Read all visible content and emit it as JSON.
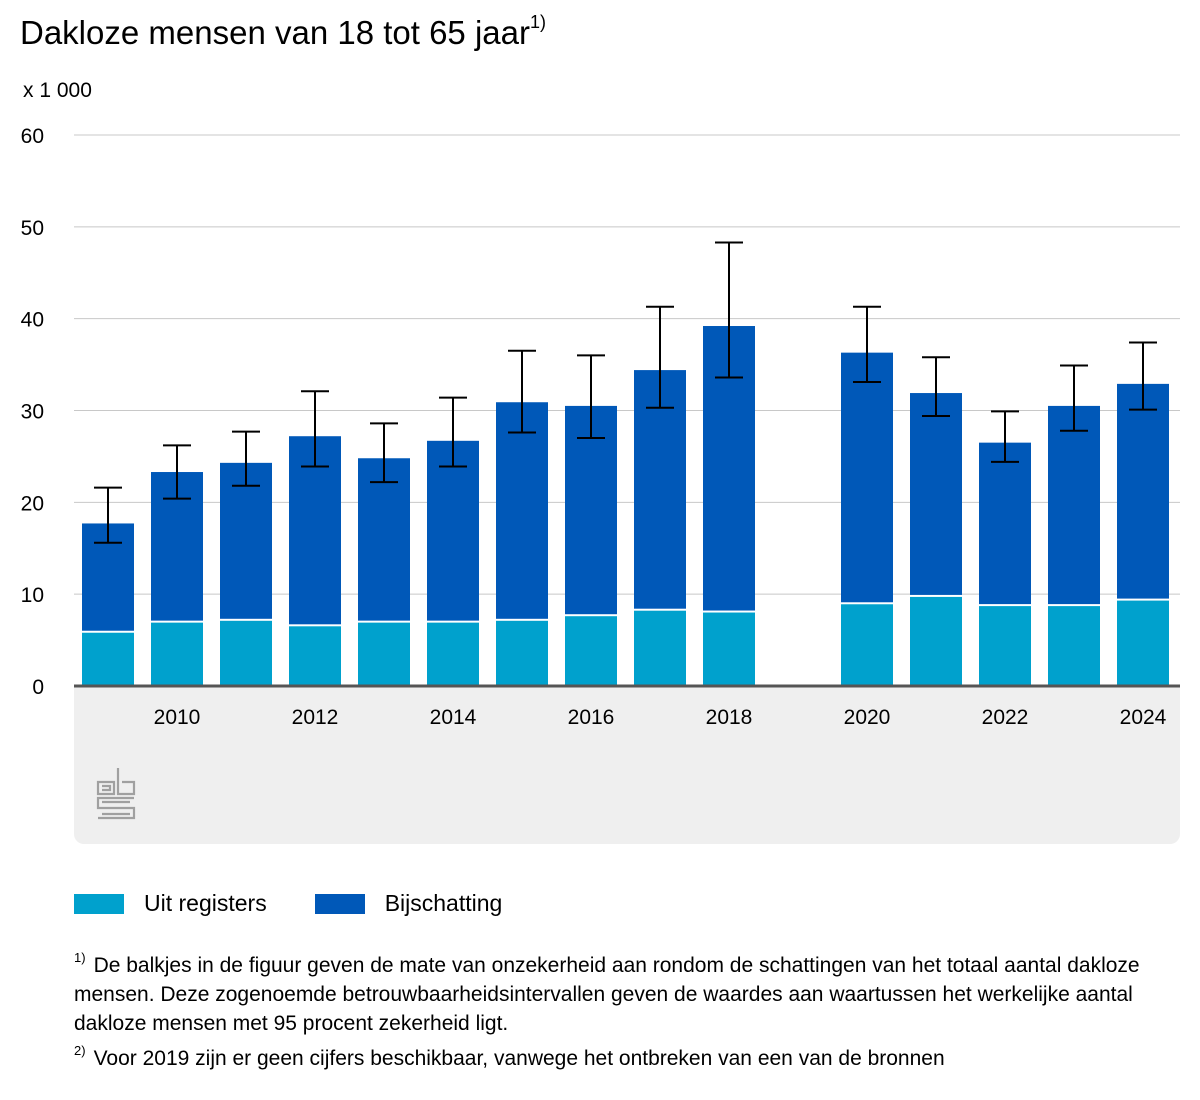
{
  "title": "Dakloze mensen van 18 tot 65 jaar",
  "title_sup": "1)",
  "unit": "x 1 000",
  "colors": {
    "registers": "#00a1cd",
    "estimate": "#0058b8",
    "grid": "#c8c8c8",
    "axis": "#555555",
    "panel": "#efefef",
    "error": "#000000",
    "logo": "#a0a0a0"
  },
  "logo_icon": "cbs-logo-icon",
  "legend": [
    {
      "label": "Uit registers",
      "color_key": "registers"
    },
    {
      "label": "Bijschatting",
      "color_key": "estimate"
    }
  ],
  "notes": [
    {
      "marker": "1)",
      "text": "De balkjes in de figuur geven de mate van onzekerheid aan rondom de schattingen van het totaal aantal dakloze mensen. Deze zogenoemde betrouwbaarheidsintervallen geven de waardes aan waartussen het werkelijke aantal dakloze mensen met 95 procent zekerheid ligt."
    },
    {
      "marker": "2)",
      "text": "Voor 2019 zijn er geen cijfers beschikbaar, vanwege het ontbreken van een van de bronnen"
    }
  ],
  "chart_data": {
    "type": "bar",
    "stacked": true,
    "categories": [
      2009,
      2010,
      2011,
      2012,
      2013,
      2014,
      2015,
      2016,
      2017,
      2018,
      2019,
      2020,
      2021,
      2022,
      2023,
      2024
    ],
    "x_tick_labels": [
      "",
      "2010",
      "",
      "2012",
      "",
      "2014",
      "",
      "2016",
      "",
      "2018",
      "",
      "2020",
      "",
      "2022",
      "",
      "2024"
    ],
    "series": [
      {
        "name": "Uit registers",
        "values": [
          5.8,
          6.9,
          7.1,
          6.5,
          6.9,
          6.9,
          7.1,
          7.6,
          8.2,
          8.0,
          null,
          8.9,
          9.7,
          8.7,
          8.7,
          9.3
        ]
      },
      {
        "name": "Bijschatting",
        "values": [
          11.9,
          16.4,
          17.2,
          20.7,
          17.9,
          19.8,
          23.8,
          22.9,
          26.2,
          31.2,
          null,
          27.4,
          22.2,
          17.8,
          21.8,
          23.6
        ]
      }
    ],
    "error_bars": [
      [
        15.6,
        21.6
      ],
      [
        20.4,
        26.2
      ],
      [
        21.8,
        27.7
      ],
      [
        23.9,
        32.1
      ],
      [
        22.2,
        28.6
      ],
      [
        23.9,
        31.4
      ],
      [
        27.6,
        36.5
      ],
      [
        27.0,
        36.0
      ],
      [
        30.3,
        41.3
      ],
      [
        33.6,
        48.3
      ],
      null,
      [
        33.1,
        41.3
      ],
      [
        29.4,
        35.8
      ],
      [
        24.4,
        29.9
      ],
      [
        27.8,
        34.9
      ],
      [
        30.1,
        37.4
      ]
    ],
    "y_ticks": [
      0,
      10,
      20,
      30,
      40,
      50,
      60
    ],
    "ylim": [
      0,
      60
    ],
    "grid": true,
    "legend_position": "bottom-left"
  }
}
